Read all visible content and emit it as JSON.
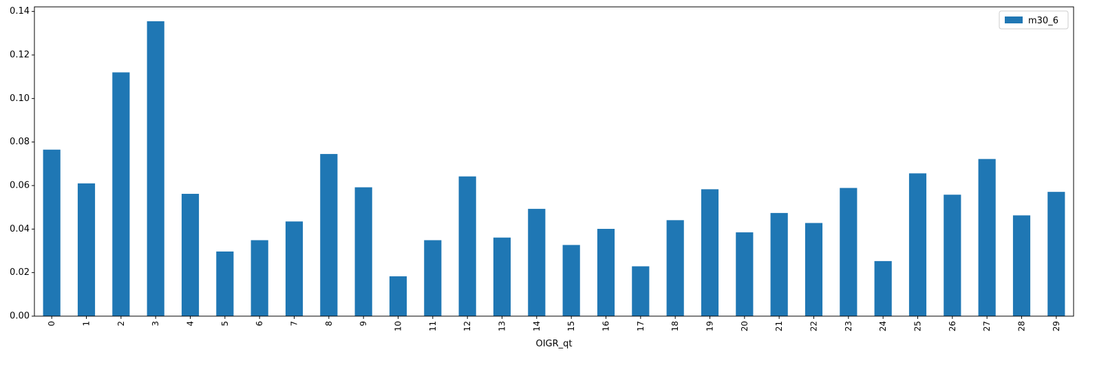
{
  "chart_data": {
    "type": "bar",
    "categories": [
      "0",
      "1",
      "2",
      "3",
      "4",
      "5",
      "6",
      "7",
      "8",
      "9",
      "10",
      "11",
      "12",
      "13",
      "14",
      "15",
      "16",
      "17",
      "18",
      "19",
      "20",
      "21",
      "22",
      "23",
      "24",
      "25",
      "26",
      "27",
      "28",
      "29"
    ],
    "series": [
      {
        "name": "m30_6",
        "color": "#1f77b4",
        "values": [
          0.0765,
          0.061,
          0.112,
          0.1355,
          0.0562,
          0.0297,
          0.0349,
          0.0435,
          0.0745,
          0.0592,
          0.0183,
          0.0349,
          0.0642,
          0.0361,
          0.0493,
          0.0327,
          0.0401,
          0.0229,
          0.0441,
          0.0583,
          0.0385,
          0.0474,
          0.0428,
          0.0589,
          0.0253,
          0.0656,
          0.0558,
          0.0722,
          0.0463,
          0.0571
        ]
      }
    ],
    "title": "",
    "xlabel": "OIGR_qt",
    "ylabel": "",
    "ylim": [
      0,
      0.1421
    ],
    "yticks": [
      0.0,
      0.02,
      0.04,
      0.06,
      0.08,
      0.1,
      0.12,
      0.14
    ],
    "ytick_labels": [
      "0.00",
      "0.02",
      "0.04",
      "0.06",
      "0.08",
      "0.10",
      "0.12",
      "0.14"
    ],
    "grid": false,
    "legend_position": "top-right"
  }
}
